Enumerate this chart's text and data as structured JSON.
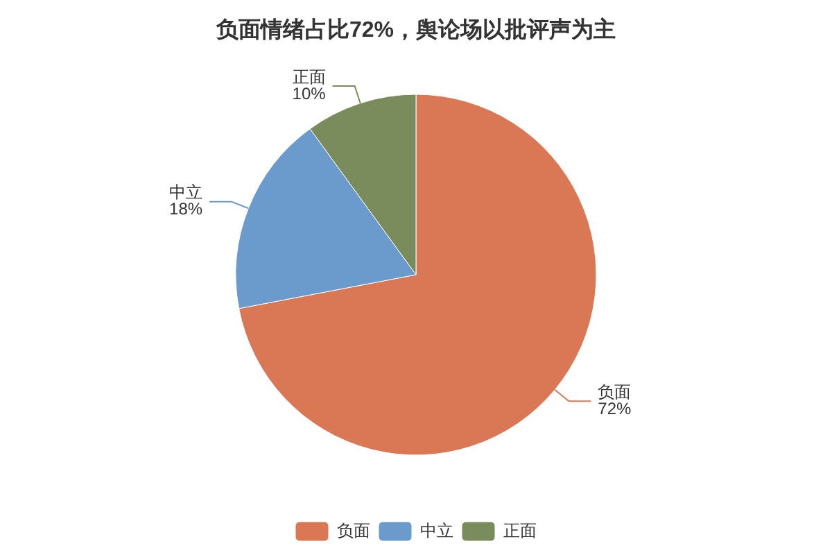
{
  "chart_data": {
    "type": "pie",
    "title": "负面情绪占比72%，舆论场以批评声为主",
    "categories": [
      "负面",
      "中立",
      "正面"
    ],
    "values": [
      72,
      18,
      10
    ],
    "colors": [
      "#da7755",
      "#6a9bcc",
      "#7a8b5c"
    ],
    "value_labels": [
      "72%",
      "18%",
      "10%"
    ],
    "legend": "bottom"
  }
}
